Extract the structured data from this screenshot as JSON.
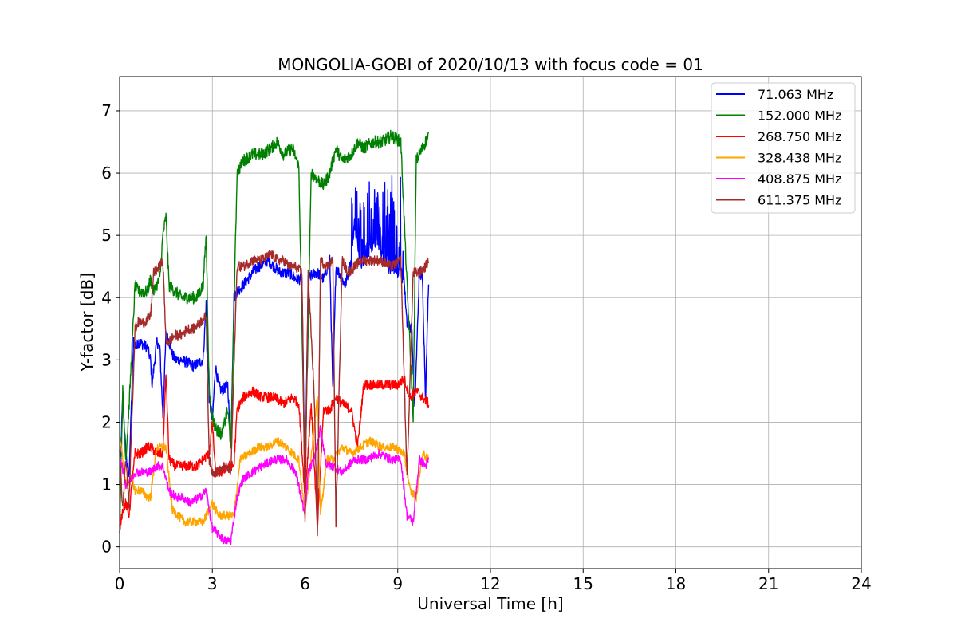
{
  "chart_data": {
    "type": "line",
    "title": "MONGOLIA-GOBI of 2020/10/13 with focus code = 01",
    "xlabel": "Universal Time [h]",
    "ylabel": "Y-factor [dB]",
    "xlim": [
      0,
      24
    ],
    "ylim": [
      -0.35,
      7.55
    ],
    "xticks": [
      0,
      3,
      6,
      9,
      12,
      15,
      18,
      21,
      24
    ],
    "yticks": [
      0,
      1,
      2,
      3,
      4,
      5,
      6,
      7
    ],
    "grid": true,
    "legend_position": "top-right",
    "series": [
      {
        "name": " 71.063 MHz",
        "color": "#0000ff",
        "noise": 0.09,
        "x": [
          0.0,
          0.1,
          0.2,
          0.3,
          0.45,
          0.55,
          0.6,
          0.9,
          1.0,
          1.05,
          1.2,
          1.3,
          1.4,
          1.5,
          1.6,
          1.7,
          1.8,
          2.0,
          2.4,
          2.7,
          2.8,
          2.9,
          3.0,
          3.1,
          3.2,
          3.3,
          3.5,
          3.6,
          3.7,
          3.8,
          4.0,
          4.3,
          4.5,
          4.8,
          5.0,
          5.2,
          5.5,
          5.7,
          5.9,
          6.0,
          6.1,
          6.3,
          6.4,
          6.6,
          6.8,
          6.9,
          7.0,
          7.1,
          7.3,
          7.5,
          7.6,
          7.8,
          8.0,
          8.3,
          8.6,
          9.0,
          9.2,
          9.3,
          9.45,
          9.55,
          9.7,
          9.8,
          9.9,
          10.0
        ],
        "y": [
          1.0,
          2.4,
          1.5,
          1.1,
          3.3,
          3.2,
          3.3,
          3.2,
          3.0,
          2.6,
          3.3,
          3.2,
          2.1,
          3.4,
          3.3,
          3.1,
          3.0,
          3.0,
          2.9,
          3.0,
          3.9,
          2.4,
          2.0,
          2.9,
          2.6,
          2.5,
          2.6,
          1.6,
          4.0,
          4.1,
          4.2,
          4.4,
          4.5,
          4.6,
          4.5,
          4.4,
          4.4,
          4.3,
          4.3,
          0.8,
          4.3,
          4.4,
          4.4,
          4.3,
          4.6,
          2.5,
          4.5,
          4.4,
          4.2,
          4.6,
          5.2,
          4.5,
          4.7,
          4.9,
          4.5,
          4.4,
          4.3,
          3.6,
          3.5,
          2.2,
          4.4,
          4.3,
          2.4,
          4.3
        ],
        "burst": {
          "x0": 7.5,
          "x1": 9.2,
          "top": 6.0
        }
      },
      {
        "name": "152.000 MHz",
        "color": "#008000",
        "noise": 0.1,
        "x": [
          0.0,
          0.1,
          0.2,
          0.3,
          0.5,
          0.6,
          0.9,
          1.0,
          1.1,
          1.3,
          1.4,
          1.5,
          1.6,
          1.8,
          2.0,
          2.5,
          2.7,
          2.8,
          2.9,
          3.0,
          3.1,
          3.3,
          3.5,
          3.6,
          3.8,
          4.0,
          4.3,
          4.6,
          4.9,
          5.1,
          5.3,
          5.6,
          5.8,
          6.0,
          6.2,
          6.4,
          6.6,
          6.8,
          7.0,
          7.2,
          7.5,
          7.7,
          7.9,
          8.2,
          8.5,
          8.8,
          9.1,
          9.3,
          9.5,
          9.6,
          9.8,
          10.0
        ],
        "y": [
          0.2,
          2.5,
          1.4,
          2.2,
          4.2,
          4.1,
          4.1,
          4.3,
          4.1,
          4.3,
          5.0,
          5.3,
          4.2,
          4.1,
          4.0,
          4.0,
          4.2,
          5.0,
          2.5,
          2.1,
          1.9,
          1.8,
          2.2,
          1.6,
          6.0,
          6.2,
          6.3,
          6.3,
          6.4,
          6.5,
          6.3,
          6.4,
          6.1,
          1.0,
          6.0,
          5.9,
          5.8,
          6.0,
          6.4,
          6.2,
          6.3,
          6.5,
          6.4,
          6.5,
          6.5,
          6.6,
          6.5,
          4.2,
          2.1,
          6.2,
          6.4,
          6.6
        ]
      },
      {
        "name": "268.750 MHz",
        "color": "#ff0000",
        "noise": 0.08,
        "x": [
          0.0,
          0.1,
          0.2,
          0.3,
          0.5,
          0.7,
          0.9,
          1.0,
          1.2,
          1.4,
          1.5,
          1.6,
          1.8,
          2.0,
          2.2,
          2.5,
          2.7,
          2.9,
          3.0,
          3.1,
          3.3,
          3.5,
          3.7,
          3.8,
          4.0,
          4.3,
          4.6,
          5.0,
          5.3,
          5.6,
          5.8,
          6.0,
          6.2,
          6.4,
          6.6,
          6.8,
          7.0,
          7.2,
          7.5,
          7.7,
          7.9,
          8.2,
          8.6,
          9.0,
          9.2,
          9.4,
          9.6,
          9.8,
          10.0
        ],
        "y": [
          0.3,
          0.6,
          0.7,
          0.5,
          1.5,
          1.5,
          1.6,
          1.6,
          1.5,
          1.5,
          2.8,
          1.4,
          1.3,
          1.3,
          1.3,
          1.3,
          1.4,
          1.5,
          2.0,
          1.2,
          1.2,
          1.3,
          1.3,
          2.2,
          2.4,
          2.5,
          2.4,
          2.4,
          2.3,
          2.4,
          2.3,
          0.8,
          2.3,
          0.3,
          2.2,
          2.2,
          2.4,
          2.3,
          2.2,
          1.6,
          2.6,
          2.6,
          2.6,
          2.6,
          2.7,
          2.4,
          2.5,
          2.4,
          2.3
        ]
      },
      {
        "name": "328.438 MHz",
        "color": "#ffa500",
        "noise": 0.07,
        "x": [
          0.0,
          0.2,
          0.4,
          0.5,
          0.7,
          0.9,
          1.0,
          1.2,
          1.4,
          1.5,
          1.7,
          1.9,
          2.1,
          2.4,
          2.7,
          2.9,
          3.0,
          3.2,
          3.5,
          3.7,
          3.9,
          4.2,
          4.5,
          4.8,
          5.1,
          5.4,
          5.6,
          5.8,
          6.0,
          6.2,
          6.4,
          6.5,
          6.7,
          6.9,
          7.2,
          7.5,
          7.8,
          8.1,
          8.5,
          8.9,
          9.2,
          9.4,
          9.6,
          9.8,
          10.0
        ],
        "y": [
          1.8,
          1.0,
          1.1,
          0.9,
          0.9,
          0.8,
          0.8,
          1.6,
          1.6,
          1.6,
          0.6,
          0.5,
          0.4,
          0.4,
          0.4,
          0.6,
          0.7,
          0.5,
          0.5,
          0.5,
          1.4,
          1.5,
          1.6,
          1.6,
          1.7,
          1.6,
          1.5,
          1.4,
          0.5,
          1.5,
          2.4,
          0.5,
          1.4,
          1.4,
          1.6,
          1.5,
          1.6,
          1.7,
          1.6,
          1.6,
          1.5,
          0.9,
          0.8,
          1.5,
          1.4
        ]
      },
      {
        "name": "408.875 MHz",
        "color": "#ff00ff",
        "noise": 0.07,
        "x": [
          0.0,
          0.2,
          0.4,
          0.5,
          0.7,
          1.0,
          1.2,
          1.4,
          1.6,
          1.8,
          2.0,
          2.3,
          2.6,
          2.8,
          3.0,
          3.2,
          3.4,
          3.6,
          3.8,
          4.0,
          4.3,
          4.6,
          5.0,
          5.4,
          5.7,
          6.0,
          6.1,
          6.3,
          6.5,
          6.7,
          6.9,
          7.2,
          7.6,
          8.0,
          8.4,
          8.8,
          9.1,
          9.3,
          9.5,
          9.7,
          9.9,
          10.0
        ],
        "y": [
          1.5,
          1.0,
          1.1,
          1.2,
          1.2,
          1.2,
          1.3,
          1.3,
          0.9,
          0.8,
          0.8,
          0.7,
          0.8,
          0.9,
          0.3,
          0.2,
          0.1,
          0.1,
          0.8,
          1.1,
          1.2,
          1.3,
          1.4,
          1.4,
          1.2,
          0.5,
          1.2,
          1.4,
          1.9,
          1.3,
          1.3,
          1.2,
          1.4,
          1.4,
          1.5,
          1.4,
          1.4,
          0.5,
          0.4,
          1.4,
          1.3,
          1.4
        ]
      },
      {
        "name": "611.375 MHz",
        "color": "#a52a2a",
        "noise": 0.08,
        "x": [
          0.0,
          0.1,
          0.2,
          0.3,
          0.5,
          0.6,
          0.8,
          1.0,
          1.1,
          1.3,
          1.4,
          1.5,
          1.6,
          1.8,
          2.0,
          2.2,
          2.4,
          2.6,
          2.8,
          2.9,
          3.0,
          3.2,
          3.4,
          3.6,
          3.8,
          4.0,
          4.3,
          4.6,
          4.9,
          5.1,
          5.3,
          5.5,
          5.7,
          5.9,
          6.0,
          6.1,
          6.3,
          6.4,
          6.5,
          6.7,
          6.9,
          7.0,
          7.2,
          7.4,
          7.6,
          7.8,
          8.1,
          8.4,
          8.8,
          9.1,
          9.3,
          9.5,
          9.7,
          9.9,
          10.0
        ],
        "y": [
          1.5,
          0.6,
          1.4,
          0.7,
          3.5,
          3.6,
          3.6,
          3.7,
          4.4,
          4.5,
          4.6,
          3.3,
          3.3,
          3.4,
          3.4,
          3.5,
          3.5,
          3.6,
          3.7,
          1.4,
          1.2,
          1.2,
          1.3,
          1.2,
          4.5,
          4.5,
          4.6,
          4.6,
          4.7,
          4.6,
          4.6,
          4.5,
          4.5,
          4.4,
          0.4,
          4.4,
          2.4,
          0.1,
          4.6,
          4.5,
          4.6,
          0.3,
          4.6,
          4.4,
          4.5,
          4.6,
          4.6,
          4.6,
          4.5,
          4.6,
          1.1,
          4.4,
          4.4,
          4.5,
          4.6
        ]
      }
    ]
  }
}
